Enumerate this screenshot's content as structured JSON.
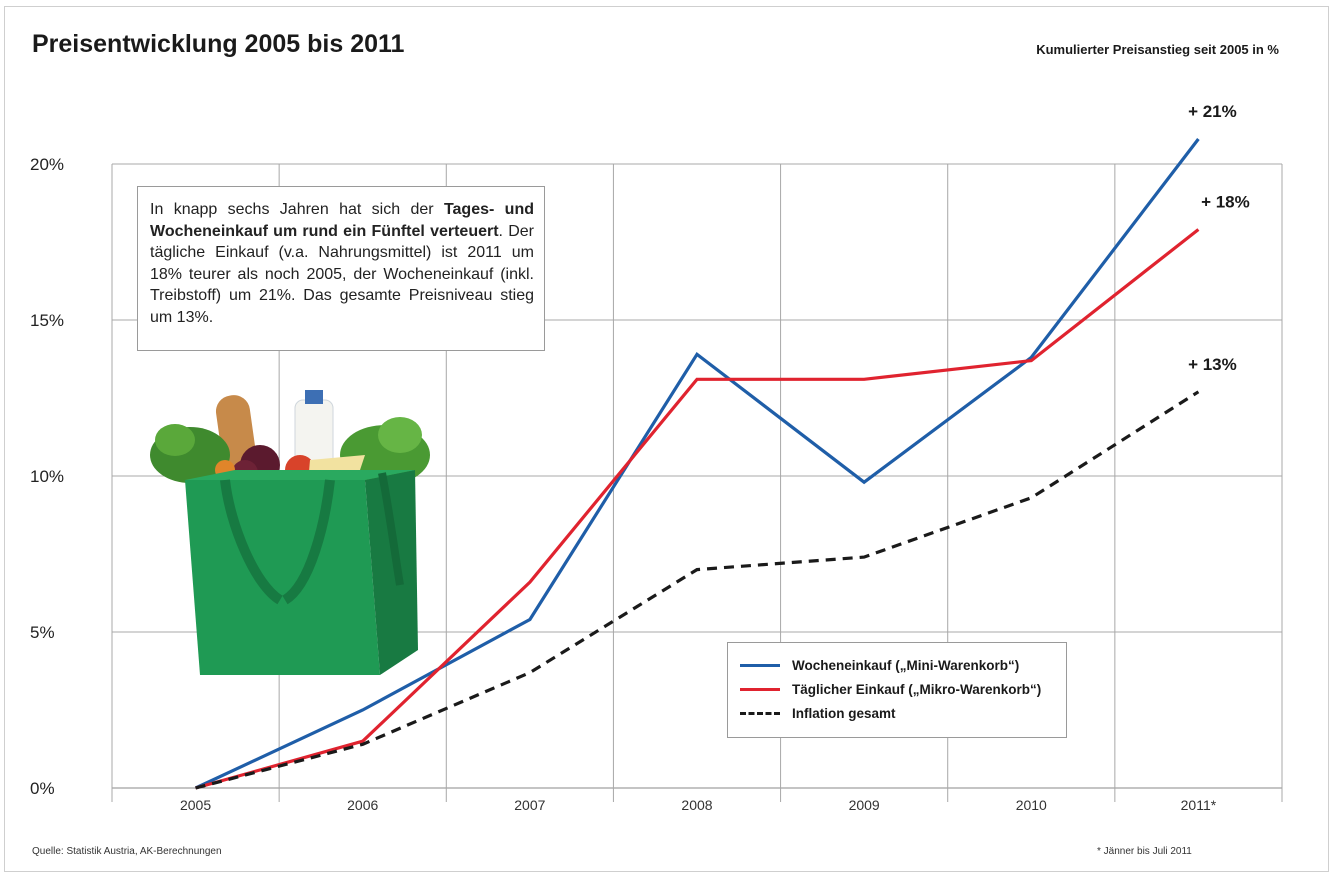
{
  "title": "Preisentwicklung 2005 bis 2011",
  "subtitle": "Kumulierter Preisanstieg seit 2005 in %",
  "source": "Quelle: Statistik Austria, AK-Berechnungen",
  "footnote": "* Jänner bis Juli 2011",
  "textbox": {
    "p1": "In knapp sechs Jahren hat sich der ",
    "bold": "Tages- und Wocheneinkauf um rund ein Fünftel verteuert",
    "p2": ". Der tägliche Einkauf (v.a. Nahrungsmittel) ist 2011 um 18% teurer als noch 2005, der Wo­cheneinkauf (inkl. Treibstoff) um 21%. Das ge­samte Preisniveau stieg um 13%."
  },
  "chart_data": {
    "type": "line",
    "title": "Preisentwicklung 2005 bis 2011",
    "ylabel": "",
    "xlabel": "",
    "categories": [
      "2005",
      "2006",
      "2007",
      "2008",
      "2009",
      "2010",
      "2011*"
    ],
    "y_ticks": [
      "0%",
      "5%",
      "10%",
      "15%",
      "20%"
    ],
    "ylim": [
      0,
      20
    ],
    "grid": true,
    "legend_position": "bottom-right",
    "series": [
      {
        "name": "Wocheneinkauf („Mini-Warenkorb“)",
        "color": "#1f5ea8",
        "style": "solid",
        "values": [
          0,
          2.5,
          5.4,
          13.9,
          9.8,
          13.8,
          20.8
        ]
      },
      {
        "name": "Täglicher Einkauf („Mikro-Warenkorb“)",
        "color": "#e0232f",
        "style": "solid",
        "values": [
          0,
          1.5,
          6.6,
          13.1,
          13.1,
          13.7,
          17.9
        ]
      },
      {
        "name": "Inflation gesamt",
        "color": "#1a1a1a",
        "style": "dashed",
        "values": [
          0,
          1.4,
          3.7,
          7.0,
          7.4,
          9.3,
          12.7
        ]
      }
    ],
    "end_labels": [
      "+ 21%",
      "+ 18%",
      "+ 13%"
    ]
  }
}
